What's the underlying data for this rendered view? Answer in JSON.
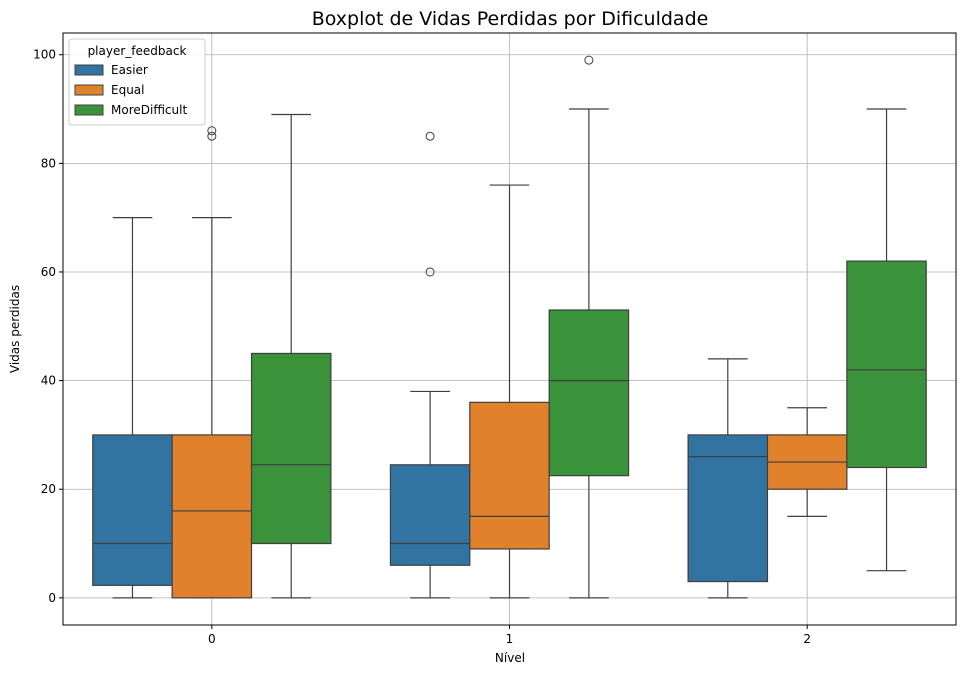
{
  "chart_data": {
    "type": "boxplot",
    "title": "Boxplot de Vidas Perdidas por Dificuldade",
    "xlabel": "Nível",
    "ylabel": "Vidas perdidas",
    "categories": [
      "0",
      "1",
      "2"
    ],
    "ylim": [
      -5,
      104
    ],
    "yticks": [
      0,
      20,
      40,
      60,
      80,
      100
    ],
    "grid": true,
    "legend": {
      "title": "player_feedback",
      "placement": "top-left"
    },
    "series": [
      {
        "name": "Easier",
        "color": "#3274a1",
        "boxes": [
          {
            "whisker_low": 0,
            "q1": 2.3,
            "median": 10,
            "q3": 30,
            "whisker_high": 70,
            "outliers": []
          },
          {
            "whisker_low": 0,
            "q1": 6,
            "median": 10,
            "q3": 24.5,
            "whisker_high": 38,
            "outliers": [
              60,
              85
            ]
          },
          {
            "whisker_low": 0,
            "q1": 3,
            "median": 26,
            "q3": 30,
            "whisker_high": 44,
            "outliers": []
          }
        ]
      },
      {
        "name": "Equal",
        "color": "#e1812c",
        "boxes": [
          {
            "whisker_low": 0,
            "q1": 0,
            "median": 16,
            "q3": 30,
            "whisker_high": 70,
            "outliers": [
              85,
              86
            ]
          },
          {
            "whisker_low": 0,
            "q1": 9,
            "median": 15,
            "q3": 36,
            "whisker_high": 76,
            "outliers": []
          },
          {
            "whisker_low": 15,
            "q1": 20,
            "median": 25,
            "q3": 30,
            "whisker_high": 35,
            "outliers": []
          }
        ]
      },
      {
        "name": "MoreDifficult",
        "color": "#3a923a",
        "boxes": [
          {
            "whisker_low": 0,
            "q1": 10,
            "median": 24.5,
            "q3": 45,
            "whisker_high": 89,
            "outliers": []
          },
          {
            "whisker_low": 0,
            "q1": 22.5,
            "median": 40,
            "q3": 53,
            "whisker_high": 90,
            "outliers": [
              99
            ]
          },
          {
            "whisker_low": 5,
            "q1": 24,
            "median": 42,
            "q3": 62,
            "whisker_high": 90,
            "outliers": []
          }
        ]
      }
    ]
  }
}
